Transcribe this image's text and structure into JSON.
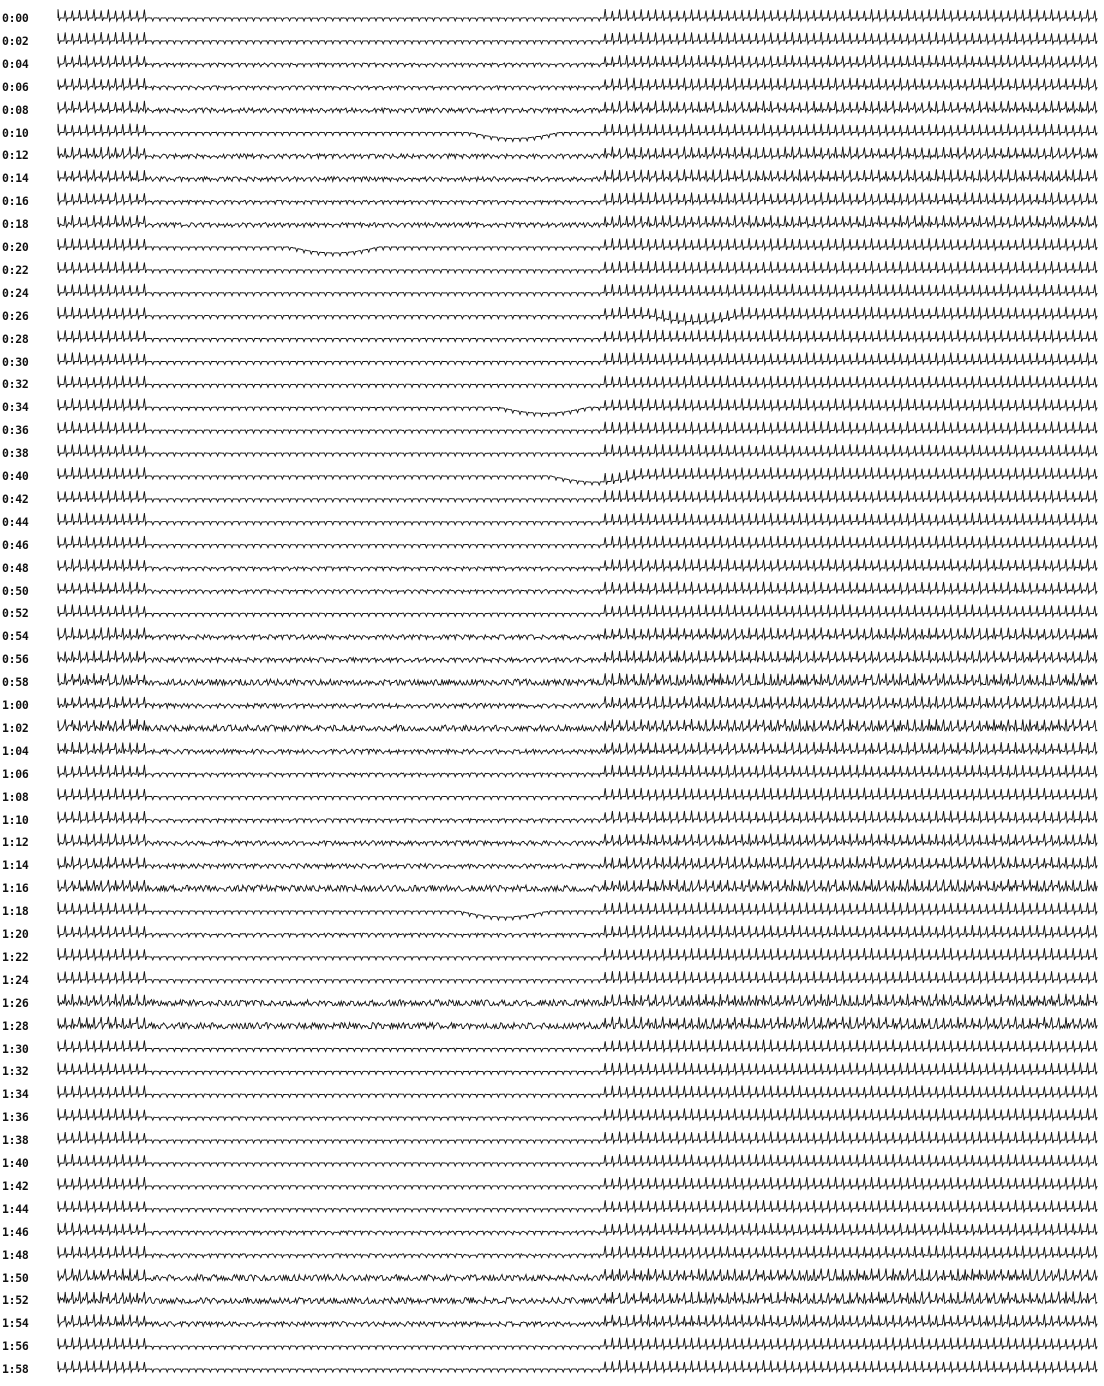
{
  "record": {
    "ink_color": "#111111",
    "paper_color": "#ffffff",
    "rows": [
      {
        "time": "0:00",
        "activity": "normal"
      },
      {
        "time": "0:02",
        "activity": "normal"
      },
      {
        "time": "0:04",
        "activity": "mild"
      },
      {
        "time": "0:06",
        "activity": "mild"
      },
      {
        "time": "0:08",
        "activity": "noisy"
      },
      {
        "time": "0:10",
        "activity": "baseline-shift"
      },
      {
        "time": "0:12",
        "activity": "noisy"
      },
      {
        "time": "0:14",
        "activity": "noisy"
      },
      {
        "time": "0:16",
        "activity": "mild"
      },
      {
        "time": "0:18",
        "activity": "noisy"
      },
      {
        "time": "0:20",
        "activity": "baseline-shift"
      },
      {
        "time": "0:22",
        "activity": "normal"
      },
      {
        "time": "0:24",
        "activity": "normal"
      },
      {
        "time": "0:26",
        "activity": "baseline-shift"
      },
      {
        "time": "0:28",
        "activity": "normal"
      },
      {
        "time": "0:30",
        "activity": "normal"
      },
      {
        "time": "0:32",
        "activity": "normal"
      },
      {
        "time": "0:34",
        "activity": "baseline-shift"
      },
      {
        "time": "0:36",
        "activity": "normal"
      },
      {
        "time": "0:38",
        "activity": "normal"
      },
      {
        "time": "0:40",
        "activity": "baseline-shift"
      },
      {
        "time": "0:42",
        "activity": "normal"
      },
      {
        "time": "0:44",
        "activity": "normal"
      },
      {
        "time": "0:46",
        "activity": "normal"
      },
      {
        "time": "0:48",
        "activity": "mild"
      },
      {
        "time": "0:50",
        "activity": "mild"
      },
      {
        "time": "0:52",
        "activity": "normal"
      },
      {
        "time": "0:54",
        "activity": "noisy"
      },
      {
        "time": "0:56",
        "activity": "noisy"
      },
      {
        "time": "0:58",
        "activity": "heavy"
      },
      {
        "time": "1:00",
        "activity": "noisy"
      },
      {
        "time": "1:02",
        "activity": "heavy"
      },
      {
        "time": "1:04",
        "activity": "noisy"
      },
      {
        "time": "1:06",
        "activity": "mild"
      },
      {
        "time": "1:08",
        "activity": "normal"
      },
      {
        "time": "1:10",
        "activity": "mild"
      },
      {
        "time": "1:12",
        "activity": "noisy"
      },
      {
        "time": "1:14",
        "activity": "noisy"
      },
      {
        "time": "1:16",
        "activity": "heavy"
      },
      {
        "time": "1:18",
        "activity": "baseline-shift"
      },
      {
        "time": "1:20",
        "activity": "mild"
      },
      {
        "time": "1:22",
        "activity": "normal"
      },
      {
        "time": "1:24",
        "activity": "normal"
      },
      {
        "time": "1:26",
        "activity": "heavy"
      },
      {
        "time": "1:28",
        "activity": "heavy"
      },
      {
        "time": "1:30",
        "activity": "normal"
      },
      {
        "time": "1:32",
        "activity": "normal"
      },
      {
        "time": "1:34",
        "activity": "normal"
      },
      {
        "time": "1:36",
        "activity": "normal"
      },
      {
        "time": "1:38",
        "activity": "normal"
      },
      {
        "time": "1:40",
        "activity": "normal"
      },
      {
        "time": "1:42",
        "activity": "normal"
      },
      {
        "time": "1:44",
        "activity": "normal"
      },
      {
        "time": "1:46",
        "activity": "mild"
      },
      {
        "time": "1:48",
        "activity": "mild"
      },
      {
        "time": "1:50",
        "activity": "heavy"
      },
      {
        "time": "1:52",
        "activity": "heavy"
      },
      {
        "time": "1:54",
        "activity": "noisy"
      },
      {
        "time": "1:56",
        "activity": "normal"
      },
      {
        "time": "1:58",
        "activity": "normal"
      }
    ]
  }
}
